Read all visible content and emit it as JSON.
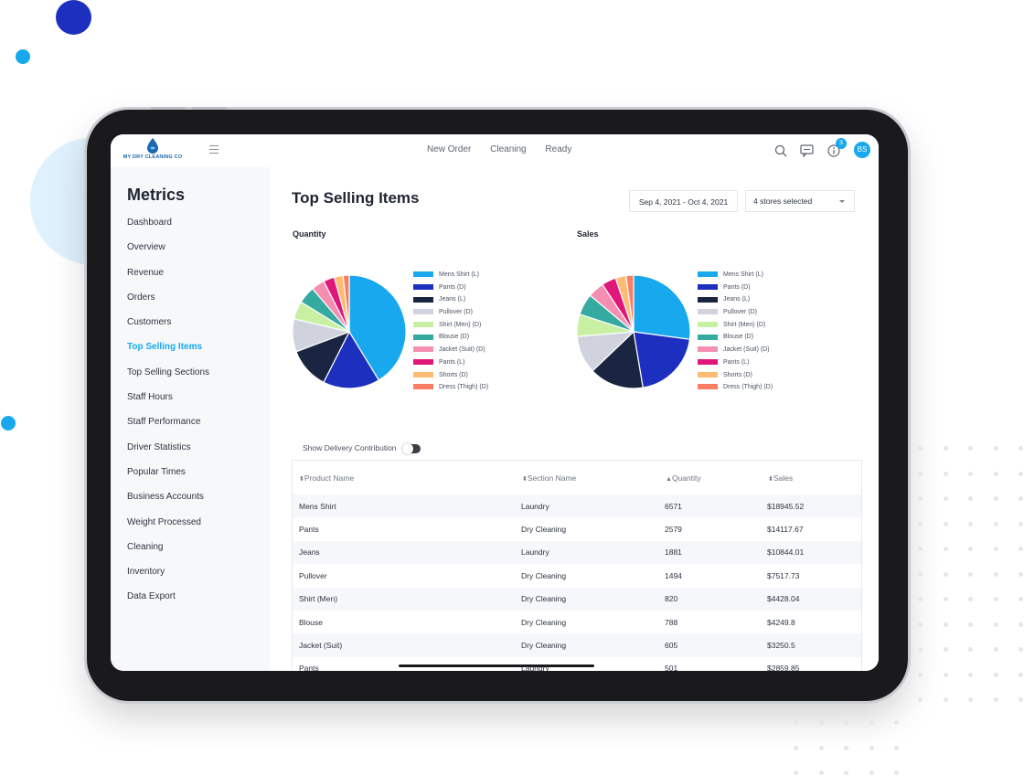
{
  "app": {
    "logo_text": "MY DRY CLEANING CO",
    "brand_color": "#17a8ee"
  },
  "topnav": {
    "items": [
      "New Order",
      "Cleaning",
      "Ready"
    ],
    "notification_count": "3",
    "avatar_initials": "BS",
    "icons": [
      "search-icon",
      "chat-icon",
      "info-icon"
    ]
  },
  "sidebar": {
    "title": "Metrics",
    "items": [
      {
        "label": "Dashboard"
      },
      {
        "label": "Overview"
      },
      {
        "label": "Revenue"
      },
      {
        "label": "Orders"
      },
      {
        "label": "Customers"
      },
      {
        "label": "Top Selling Items",
        "active": true
      },
      {
        "label": "Top Selling Sections"
      },
      {
        "label": "Staff Hours"
      },
      {
        "label": "Staff Performance"
      },
      {
        "label": "Driver Statistics"
      },
      {
        "label": "Popular Times"
      },
      {
        "label": "Business Accounts"
      },
      {
        "label": "Weight Processed"
      },
      {
        "label": "Cleaning"
      },
      {
        "label": "Inventory"
      },
      {
        "label": "Data Export"
      }
    ]
  },
  "main": {
    "title": "Top Selling Items",
    "date_range": "Sep 4, 2021 - Oct 4, 2021",
    "store_select": "4 stores selected",
    "toggle_label": "Show Delivery Contribution",
    "toggle_on": false
  },
  "chart_data": [
    {
      "type": "pie",
      "title": "Quantity",
      "categories": [
        "Mens Shirt (L)",
        "Pants (D)",
        "Jeans (L)",
        "Pullover (D)",
        "Shirt (Men) (D)",
        "Blouse (D)",
        "Jacket (Suit) (D)",
        "Pants (L)",
        "Shorts (D)",
        "Dress (Thigh) (D)"
      ],
      "values": [
        6571,
        2579,
        1881,
        1494,
        820,
        788,
        605,
        501,
        400,
        280
      ],
      "colors": [
        "#17a8ee",
        "#1c2fbf",
        "#1a2541",
        "#d0d2de",
        "#c7f0a2",
        "#34aaa0",
        "#f48fb1",
        "#e0177a",
        "#fdbb74",
        "#fa7e63"
      ],
      "legend_position": "right"
    },
    {
      "type": "pie",
      "title": "Sales",
      "categories": [
        "Mens Shirt (L)",
        "Pants (D)",
        "Jeans (L)",
        "Pullover (D)",
        "Shirt (Men) (D)",
        "Blouse (D)",
        "Jacket (Suit) (D)",
        "Pants (L)",
        "Shorts (D)",
        "Dress (Thigh) (D)"
      ],
      "values": [
        18945.52,
        14117.67,
        10844.01,
        7517.73,
        4428.04,
        4249.8,
        3250.5,
        2859.85,
        2100,
        1500
      ],
      "colors": [
        "#17a8ee",
        "#1c2fbf",
        "#1a2541",
        "#d0d2de",
        "#c7f0a2",
        "#34aaa0",
        "#f48fb1",
        "#e0177a",
        "#fdbb74",
        "#fa7e63"
      ],
      "legend_position": "right"
    }
  ],
  "table": {
    "headers": [
      "Product Name",
      "Section Name",
      "Quantity",
      "Sales"
    ],
    "rows": [
      [
        "Mens Shirt",
        "Laundry",
        "6571",
        "$18945.52"
      ],
      [
        "Pants",
        "Dry Cleaning",
        "2579",
        "$14117.67"
      ],
      [
        "Jeans",
        "Laundry",
        "1881",
        "$10844.01"
      ],
      [
        "Pullover",
        "Dry Cleaning",
        "1494",
        "$7517.73"
      ],
      [
        "Shirt (Men)",
        "Dry Cleaning",
        "820",
        "$4428.04"
      ],
      [
        "Blouse",
        "Dry Cleaning",
        "788",
        "$4249.8"
      ],
      [
        "Jacket (Suit)",
        "Dry Cleaning",
        "605",
        "$3250.5"
      ],
      [
        "Pants",
        "Laundry",
        "501",
        "$2859.85"
      ]
    ]
  }
}
